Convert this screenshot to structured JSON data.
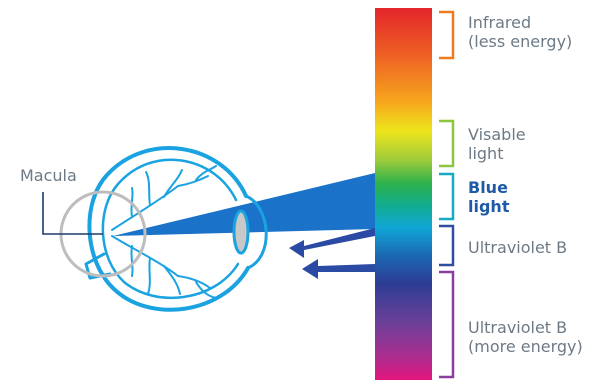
{
  "labels": {
    "macula": "Macula",
    "infrared": {
      "line1": "Infrared",
      "line2": "(less energy)"
    },
    "visible": {
      "line1": "Visable",
      "line2": "light"
    },
    "blue": {
      "line1": "Blue",
      "line2": "light"
    },
    "uvb_upper": {
      "line1": "Ultraviolet B"
    },
    "uvb_lower": {
      "line1": "Ultraviolet B",
      "line2": "(more energy)"
    }
  },
  "colors": {
    "eye": "#1aa3e0",
    "beam": "#1a73c8",
    "arrow": "#2b4aa3",
    "macula_circle": "#bdbdbd",
    "bracket_infrared": "#f07a1e",
    "bracket_visible": "#8cc63f",
    "bracket_blue": "#14a9c4",
    "bracket_uvb_upper": "#2f4ea0",
    "bracket_uvb_lower": "#8a3fa0",
    "label_text": "#6d7a86",
    "label_strong": "#1e5aa6"
  }
}
